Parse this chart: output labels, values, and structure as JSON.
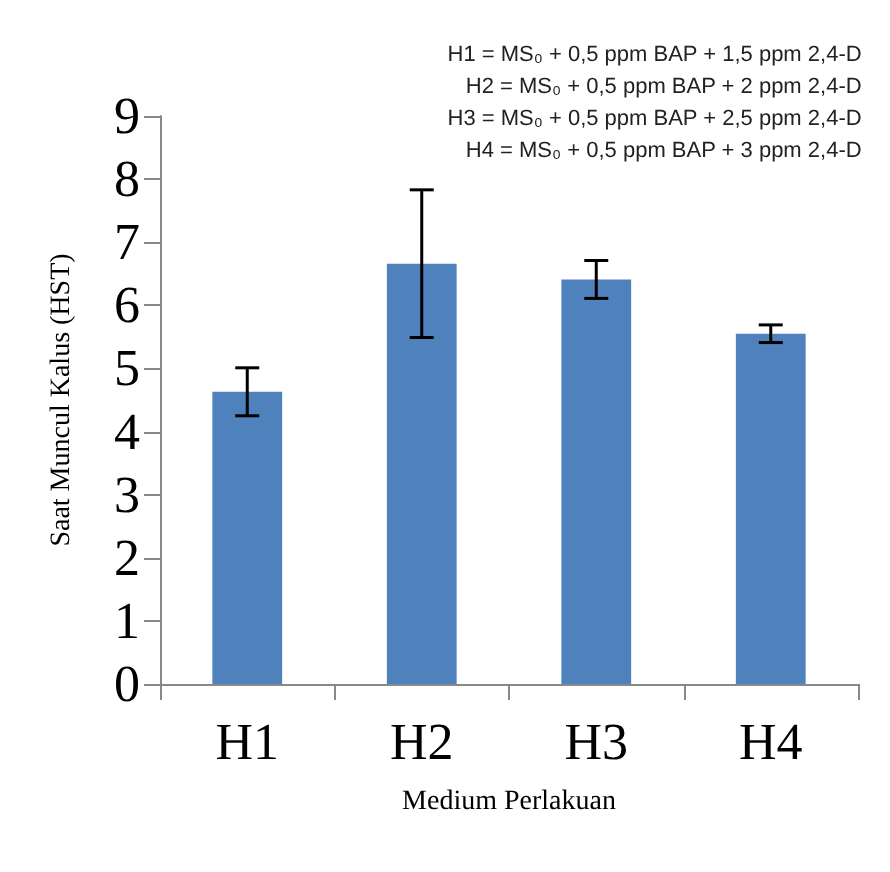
{
  "chart_data": {
    "type": "bar",
    "xlabel": "Medium Perlakuan",
    "ylabel": "Saat Muncul Kalus (HST)",
    "categories": [
      "H1",
      "H2",
      "H3",
      "H4"
    ],
    "values": [
      4.63,
      6.66,
      6.41,
      5.55
    ],
    "errors": [
      0.38,
      1.17,
      0.3,
      0.14
    ],
    "color": "#4f81bd",
    "ylim": [
      0,
      9
    ],
    "yticks": [
      0,
      1,
      2,
      3,
      4,
      5,
      6,
      7,
      8,
      9
    ],
    "grid": false,
    "annotations": [
      "H1 = MS₀ + 0,5 ppm BAP + 1,5 ppm 2,4-D",
      "H2 = MS₀ + 0,5 ppm BAP + 2 ppm 2,4-D",
      "H3 = MS₀ + 0,5 ppm BAP + 2,5 ppm 2,4-D",
      "H4 = MS₀ + 0,5 ppm BAP + 3 ppm 2,4-D"
    ]
  }
}
